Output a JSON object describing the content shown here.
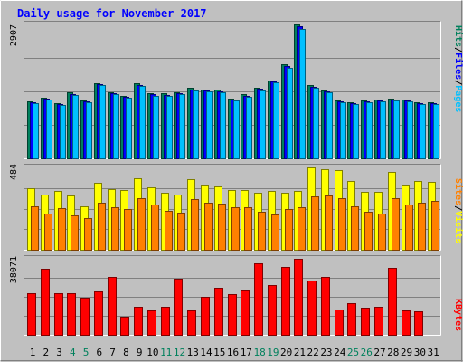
{
  "colors": {
    "background": "#c0c0c0",
    "title": "#0000ff",
    "hits": "#00805c",
    "files": "#0000ff",
    "pages": "#00c0ff",
    "visits": "#ffff00",
    "sites": "#ff8000",
    "kbytes": "#ff0000",
    "weekend_day": "#00805c",
    "weekday": "#000000"
  },
  "chart_data": {
    "title": "Daily usage for November 2017",
    "days": [
      "1",
      "2",
      "3",
      "4",
      "5",
      "6",
      "7",
      "8",
      "9",
      "10",
      "11",
      "12",
      "13",
      "14",
      "15",
      "16",
      "17",
      "18",
      "19",
      "20",
      "21",
      "22",
      "23",
      "24",
      "25",
      "26",
      "27",
      "28",
      "29",
      "30",
      "31"
    ],
    "weekend_days": [
      "4",
      "5",
      "11",
      "12",
      "18",
      "19",
      "25",
      "26"
    ],
    "panels": [
      {
        "type": "bar",
        "id": "hits-panel",
        "scale_label": "2907",
        "ylim": [
          0,
          2907
        ],
        "legend": [
          "Hits",
          "/",
          "Files",
          "/",
          "Pages"
        ],
        "series": [
          {
            "name": "Hits",
            "values": [
              1232,
              1314,
              1194,
              1427,
              1264,
              1636,
              1433,
              1353,
              1624,
              1411,
              1409,
              1439,
              1524,
              1494,
              1483,
              1303,
              1385,
              1529,
              1696,
              2040,
              2907,
              1583,
              1474,
              1266,
              1217,
              1254,
              1284,
              1289,
              1274,
              1227,
              1221
            ]
          },
          {
            "name": "Files",
            "values": [
              1209,
              1291,
              1172,
              1402,
              1242,
              1609,
              1408,
              1329,
              1597,
              1386,
              1384,
              1414,
              1498,
              1468,
              1458,
              1280,
              1361,
              1503,
              1667,
              2004,
              2859,
              1556,
              1449,
              1244,
              1196,
              1232,
              1262,
              1267,
              1252,
              1206,
              1200
            ]
          }
        ]
      },
      {
        "type": "bar",
        "id": "visits-panel",
        "scale_label": "484",
        "ylim": [
          0,
          484
        ],
        "legend": [
          "Sites",
          "/",
          "Visits"
        ],
        "series": [
          {
            "name": "Visits",
            "values": [
              360,
              323,
              347,
              318,
              254,
              393,
              358,
              350,
              420,
              365,
              335,
              327,
              416,
              384,
              371,
              352,
              352,
              333,
              346,
              333,
              345,
              484,
              476,
              469,
              406,
              338,
              343,
              459,
              385,
              406,
              400
            ]
          },
          {
            "name": "Sites",
            "values": [
              254,
              212,
              246,
              202,
              185,
              279,
              250,
              239,
              304,
              268,
              231,
              219,
              300,
              279,
              273,
              251,
              252,
              224,
              209,
              240,
              251,
              315,
              319,
              302,
              256,
              221,
              215,
              303,
              267,
              277,
              288
            ]
          }
        ]
      },
      {
        "type": "bar",
        "id": "kbytes-panel",
        "scale_label": "38071",
        "ylim": [
          0,
          38071
        ],
        "legend": [
          "KBytes"
        ],
        "series": [
          {
            "name": "KBytes",
            "values": [
              21000,
              33000,
              21000,
              20800,
              18400,
              21600,
              29000,
              9200,
              14000,
              12400,
              14000,
              28000,
              12400,
              19200,
              23600,
              20400,
              22800,
              35600,
              24800,
              33800,
              38071,
              27200,
              28800,
              12800,
              16000,
              13600,
              14000,
              33400,
              12400,
              12000,
              0
            ]
          }
        ]
      }
    ]
  }
}
